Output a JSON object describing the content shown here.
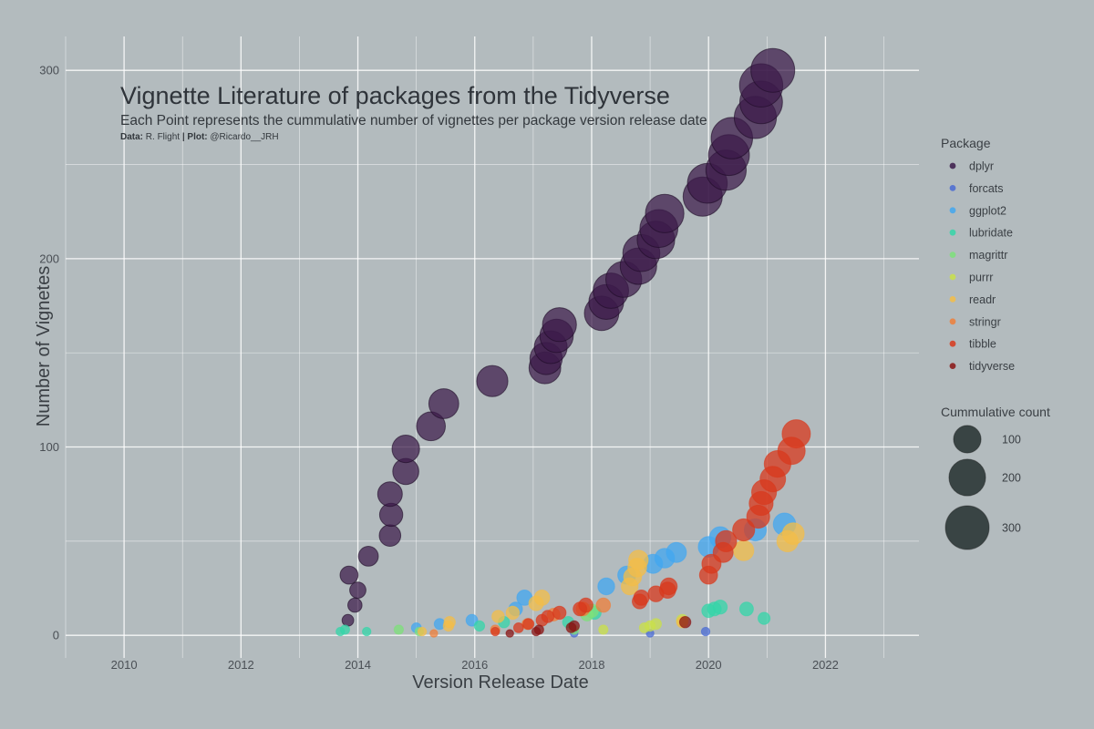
{
  "chart_data": {
    "type": "scatter",
    "title": "Vignette Literature of packages from the Tidyverse",
    "subtitle": "Each Point represents the cummulative number of vignettes per package version release date",
    "caption": {
      "data_prefix": "Data:",
      "data_source": "R. Flight",
      "separator": "|",
      "plot_prefix": "Plot:",
      "plot_author": "@Ricardo__JRH"
    },
    "xlabel": "Version Release Date",
    "ylabel": "Number of Vignetes",
    "xlim": [
      2009.0,
      2023.6
    ],
    "ylim": [
      -12,
      318
    ],
    "x_ticks": [
      2010,
      2012,
      2014,
      2016,
      2018,
      2020,
      2022
    ],
    "x_tick_labels": [
      "2010",
      "2012",
      "2014",
      "2016",
      "2018",
      "2020",
      "2022"
    ],
    "y_ticks": [
      0,
      100,
      200,
      300
    ],
    "y_tick_labels": [
      "0",
      "100",
      "200",
      "300"
    ],
    "grid": true,
    "legend_placement": "right",
    "colors": {
      "dplyr": "#3b1a4a",
      "forcats": "#4a6bd4",
      "ggplot2": "#42a7f0",
      "lubridate": "#34d6a8",
      "magrittr": "#7de07a",
      "purrr": "#c9e04a",
      "readr": "#f3bd48",
      "stringr": "#ef7f3a",
      "tibble": "#d8381c",
      "tidyverse": "#8a1414"
    },
    "legend_color": {
      "title": "Package",
      "items": [
        "dplyr",
        "forcats",
        "ggplot2",
        "lubridate",
        "magrittr",
        "purrr",
        "readr",
        "stringr",
        "tibble",
        "tidyverse"
      ]
    },
    "legend_size": {
      "title": "Cummulative count",
      "values": [
        100,
        200,
        300
      ],
      "labels": [
        "100",
        "200",
        "300"
      ]
    },
    "series": [
      {
        "name": "dplyr",
        "points": [
          [
            2013.83,
            8
          ],
          [
            2013.85,
            32
          ],
          [
            2013.95,
            16
          ],
          [
            2014.0,
            24
          ],
          [
            2014.18,
            42
          ],
          [
            2014.55,
            53
          ],
          [
            2014.57,
            64
          ],
          [
            2014.55,
            75
          ],
          [
            2014.82,
            87
          ],
          [
            2014.82,
            99
          ],
          [
            2015.25,
            111
          ],
          [
            2015.47,
            123
          ],
          [
            2016.3,
            135
          ],
          [
            2017.2,
            142
          ],
          [
            2017.22,
            147
          ],
          [
            2017.3,
            153
          ],
          [
            2017.4,
            159
          ],
          [
            2017.45,
            165
          ],
          [
            2018.17,
            171
          ],
          [
            2018.25,
            177
          ],
          [
            2018.33,
            183
          ],
          [
            2018.55,
            189
          ],
          [
            2018.8,
            196
          ],
          [
            2018.85,
            203
          ],
          [
            2019.1,
            210
          ],
          [
            2019.15,
            216
          ],
          [
            2019.25,
            224
          ],
          [
            2019.9,
            233
          ],
          [
            2019.98,
            240
          ],
          [
            2020.3,
            247
          ],
          [
            2020.35,
            255
          ],
          [
            2020.4,
            264
          ],
          [
            2020.8,
            275
          ],
          [
            2020.9,
            283
          ],
          [
            2020.9,
            292
          ],
          [
            2021.1,
            300
          ]
        ]
      },
      {
        "name": "forcats",
        "points": [
          [
            2019.0,
            1
          ],
          [
            2019.95,
            2
          ],
          [
            2017.7,
            1
          ]
        ]
      },
      {
        "name": "ggplot2",
        "points": [
          [
            2015.0,
            4
          ],
          [
            2015.4,
            6
          ],
          [
            2015.95,
            8
          ],
          [
            2016.7,
            14
          ],
          [
            2016.85,
            20
          ],
          [
            2018.25,
            26
          ],
          [
            2018.6,
            32
          ],
          [
            2019.05,
            38
          ],
          [
            2019.25,
            41
          ],
          [
            2019.45,
            44
          ],
          [
            2020.0,
            47
          ],
          [
            2020.2,
            52
          ],
          [
            2020.8,
            56
          ],
          [
            2021.3,
            59
          ]
        ]
      },
      {
        "name": "lubridate",
        "points": [
          [
            2013.7,
            2
          ],
          [
            2013.78,
            3
          ],
          [
            2014.15,
            2
          ],
          [
            2016.08,
            5
          ],
          [
            2016.5,
            7
          ],
          [
            2017.6,
            7
          ],
          [
            2018.05,
            12
          ],
          [
            2020.0,
            13
          ],
          [
            2020.1,
            14
          ],
          [
            2020.2,
            15
          ],
          [
            2020.65,
            14
          ],
          [
            2020.95,
            9
          ]
        ]
      },
      {
        "name": "magrittr",
        "points": [
          [
            2014.7,
            3
          ],
          [
            2015.05,
            2
          ],
          [
            2017.7,
            3
          ],
          [
            2017.92,
            11
          ],
          [
            2018.0,
            13
          ]
        ]
      },
      {
        "name": "purrr",
        "points": [
          [
            2018.2,
            3
          ],
          [
            2018.9,
            4
          ],
          [
            2019.0,
            5
          ],
          [
            2019.1,
            6
          ],
          [
            2019.55,
            8
          ]
        ]
      },
      {
        "name": "readr",
        "points": [
          [
            2015.1,
            2
          ],
          [
            2015.55,
            5
          ],
          [
            2015.57,
            7
          ],
          [
            2016.4,
            10
          ],
          [
            2016.65,
            12
          ],
          [
            2017.05,
            17
          ],
          [
            2017.15,
            20
          ],
          [
            2018.65,
            26
          ],
          [
            2018.7,
            31
          ],
          [
            2018.78,
            36
          ],
          [
            2018.8,
            40
          ],
          [
            2019.55,
            7
          ],
          [
            2020.6,
            45
          ],
          [
            2021.35,
            50
          ],
          [
            2021.45,
            54
          ]
        ]
      },
      {
        "name": "stringr",
        "points": [
          [
            2015.3,
            1
          ],
          [
            2016.35,
            3
          ],
          [
            2016.9,
            6
          ],
          [
            2017.35,
            11
          ],
          [
            2017.85,
            14
          ],
          [
            2018.2,
            16
          ]
        ]
      },
      {
        "name": "tibble",
        "points": [
          [
            2016.35,
            2
          ],
          [
            2016.75,
            4
          ],
          [
            2016.92,
            6
          ],
          [
            2017.15,
            8
          ],
          [
            2017.25,
            10
          ],
          [
            2017.45,
            12
          ],
          [
            2017.8,
            14
          ],
          [
            2017.9,
            16
          ],
          [
            2018.82,
            18
          ],
          [
            2018.85,
            20
          ],
          [
            2019.1,
            22
          ],
          [
            2019.3,
            24
          ],
          [
            2019.32,
            26
          ],
          [
            2020.0,
            32
          ],
          [
            2020.05,
            38
          ],
          [
            2020.25,
            44
          ],
          [
            2020.3,
            50
          ],
          [
            2020.6,
            56
          ],
          [
            2020.85,
            63
          ],
          [
            2020.9,
            70
          ],
          [
            2020.95,
            76
          ],
          [
            2021.1,
            83
          ],
          [
            2021.18,
            91
          ],
          [
            2021.42,
            98
          ],
          [
            2021.5,
            107
          ]
        ]
      },
      {
        "name": "tidyverse",
        "points": [
          [
            2016.6,
            1
          ],
          [
            2017.05,
            2
          ],
          [
            2017.1,
            3
          ],
          [
            2017.65,
            4
          ],
          [
            2017.7,
            5
          ],
          [
            2019.6,
            7
          ]
        ]
      }
    ]
  }
}
